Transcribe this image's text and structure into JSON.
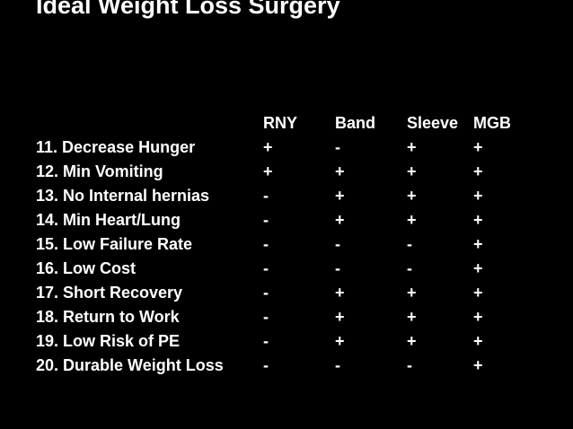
{
  "title": "Ideal Weight Loss Surgery",
  "colors": {
    "background": "#000000",
    "text": "#ffffff"
  },
  "table": {
    "columns": [
      "RNY",
      "Band",
      "Sleeve",
      "MGB"
    ],
    "rows": [
      {
        "label": "11. Decrease Hunger",
        "values": [
          "+",
          "-",
          "+",
          "+"
        ]
      },
      {
        "label": "12. Min Vomiting",
        "values": [
          "+",
          "+",
          "+",
          "+"
        ]
      },
      {
        "label": "13. No Internal hernias",
        "values": [
          "-",
          "+",
          "+",
          "+"
        ]
      },
      {
        "label": "14. Min Heart/Lung",
        "values": [
          "-",
          "+",
          "+",
          "+"
        ]
      },
      {
        "label": "15. Low Failure Rate",
        "values": [
          "-",
          "-",
          "-",
          "+"
        ]
      },
      {
        "label": "16. Low Cost",
        "values": [
          "-",
          "-",
          "-",
          "+"
        ]
      },
      {
        "label": "17. Short Recovery",
        "values": [
          "-",
          "+",
          "+",
          "+"
        ]
      },
      {
        "label": "18. Return to Work",
        "values": [
          "-",
          "+",
          "+",
          "+"
        ]
      },
      {
        "label": "19. Low Risk of PE",
        "values": [
          "-",
          "+",
          "+",
          "+"
        ]
      },
      {
        "label": "20. Durable Weight Loss",
        "values": [
          "-",
          "-",
          "-",
          "+"
        ]
      }
    ]
  }
}
